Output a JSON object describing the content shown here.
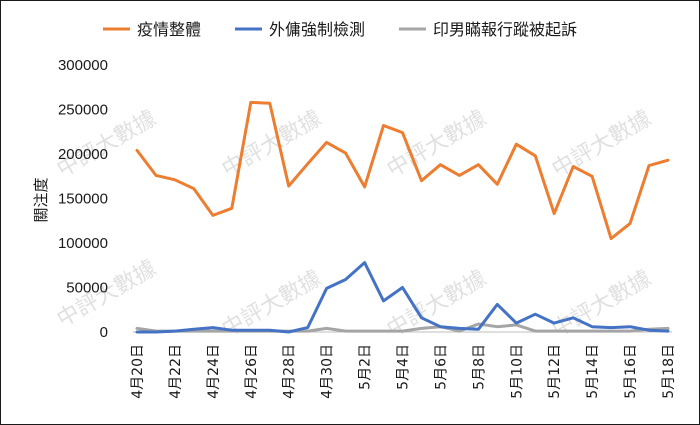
{
  "chart_data": {
    "type": "line",
    "ylabel": "關注度",
    "ylim": [
      0,
      300000
    ],
    "yticks": [
      0,
      50000,
      100000,
      150000,
      200000,
      250000,
      300000
    ],
    "ytick_labels": [
      "0",
      "50000",
      "100000",
      "150000",
      "200000",
      "250000",
      "300000"
    ],
    "x_tick_labels": [
      "4月20日",
      "4月22日",
      "4月24日",
      "4月26日",
      "4月28日",
      "4月30日",
      "5月2日",
      "5月4日",
      "5月6日",
      "5月8日",
      "5月10日",
      "5月12日",
      "5月14日",
      "5月16日",
      "5月18日"
    ],
    "x": [
      "4月20日",
      "4月21日",
      "4月22日",
      "4月23日",
      "4月24日",
      "4月25日",
      "4月26日",
      "4月27日",
      "4月28日",
      "4月29日",
      "4月30日",
      "5月1日",
      "5月2日",
      "5月3日",
      "5月4日",
      "5月5日",
      "5月6日",
      "5月7日",
      "5月8日",
      "5月9日",
      "5月10日",
      "5月11日",
      "5月12日",
      "5月13日",
      "5月14日",
      "5月15日",
      "5月16日",
      "5月17日",
      "5月18日"
    ],
    "legend_position": "top",
    "grid": false,
    "series": [
      {
        "name": "疫情整體",
        "color": "#ED7D31",
        "values": [
          204000,
          176000,
          171000,
          161000,
          131000,
          139000,
          258000,
          257000,
          164000,
          189000,
          213000,
          201000,
          163000,
          232000,
          224000,
          170000,
          188000,
          176000,
          188000,
          166000,
          211000,
          198000,
          133000,
          186000,
          175000,
          105000,
          122000,
          187000,
          193000
        ]
      },
      {
        "name": "外傭強制檢測",
        "color": "#4472C4",
        "values": [
          0,
          0,
          1000,
          3000,
          5000,
          2000,
          2000,
          2000,
          0,
          5000,
          49000,
          59000,
          78000,
          35000,
          50000,
          16000,
          6000,
          4000,
          3000,
          31000,
          10000,
          20000,
          10000,
          16000,
          6000,
          5000,
          6000,
          2000,
          1000
        ]
      },
      {
        "name": "印男瞞報行蹤被起訴",
        "color": "#A5A5A5",
        "values": [
          4000,
          1000,
          1000,
          1000,
          1000,
          1000,
          1000,
          1000,
          1000,
          1000,
          4000,
          1000,
          1000,
          1000,
          1000,
          4000,
          6000,
          1000,
          9000,
          6000,
          8000,
          1000,
          1000,
          1000,
          1000,
          1000,
          1000,
          3000,
          4000
        ]
      }
    ]
  },
  "watermark": "中評大數據"
}
